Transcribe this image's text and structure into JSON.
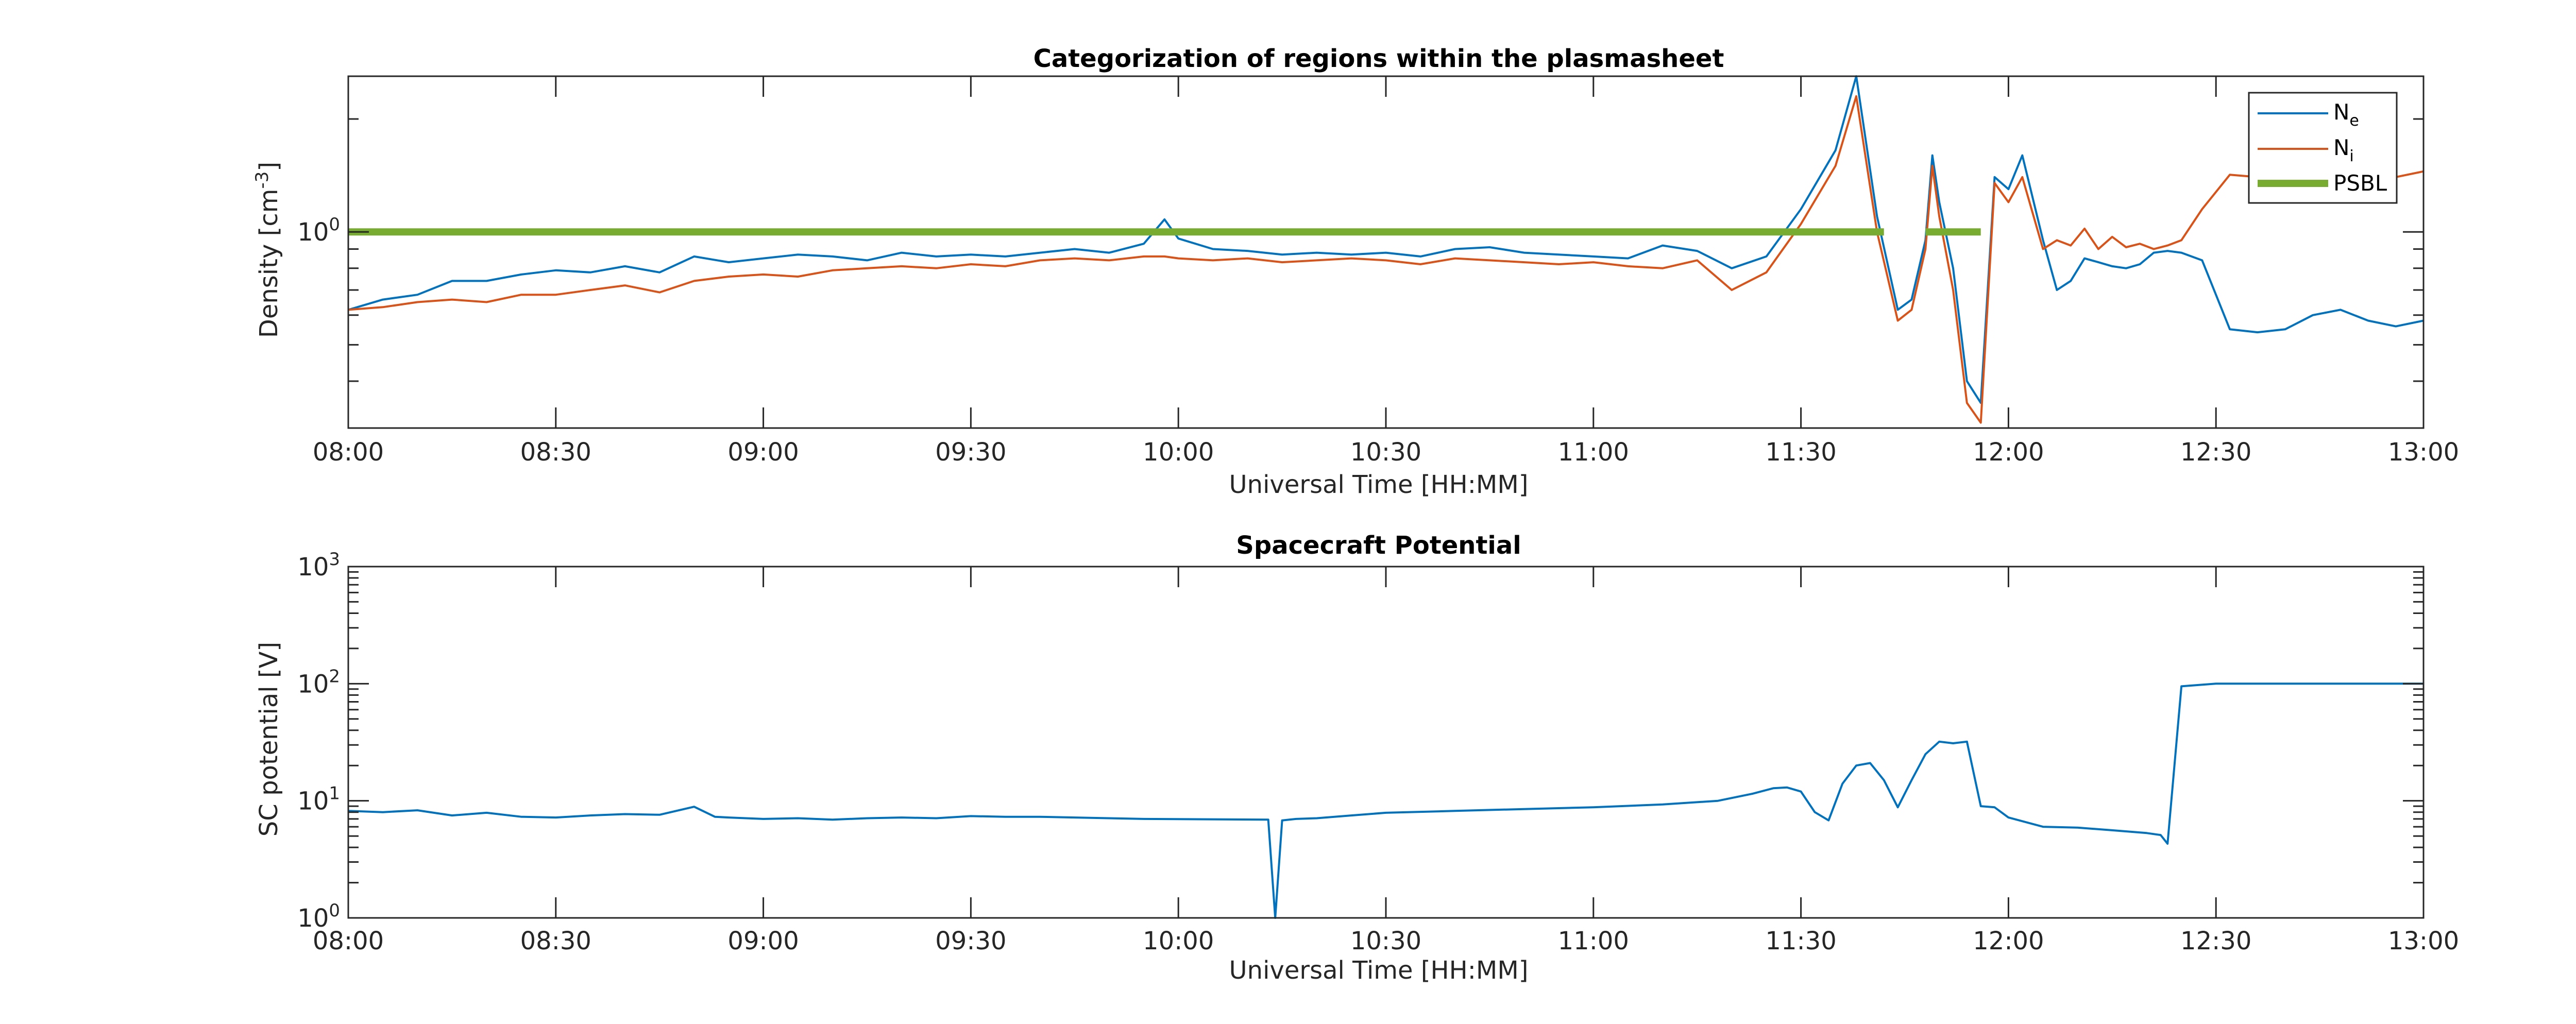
{
  "chart_data": [
    {
      "type": "line",
      "title": "Categorization of regions within the plasmasheet",
      "xlabel": "Universal Time [HH:MM]",
      "ylabel": "Density [cm",
      "ylabel_sup": "-3",
      "ylabel_end": "]",
      "yscale": "log",
      "ylim": [
        0.3,
        2.6
      ],
      "xlim": [
        0,
        300
      ],
      "x_ticks": [
        0,
        30,
        60,
        90,
        120,
        150,
        180,
        210,
        240,
        270,
        300
      ],
      "x_tick_labels": [
        "08:00",
        "08:30",
        "09:00",
        "09:30",
        "10:00",
        "10:30",
        "11:00",
        "11:30",
        "12:00",
        "12:30",
        "13:00"
      ],
      "y_tick_base": "10",
      "y_tick_exp": "0",
      "grid": false,
      "legend_position": "top-right",
      "legend": [
        {
          "base": "N",
          "sub": "e",
          "color": "#0072BD"
        },
        {
          "base": "N",
          "sub": "i",
          "color": "#D95319"
        },
        {
          "base": "PSBL",
          "sub": "",
          "color": "#77AC30"
        }
      ],
      "series": [
        {
          "name": "N_e",
          "color": "#0072BD",
          "x": [
            0,
            5,
            10,
            15,
            20,
            25,
            30,
            35,
            40,
            45,
            50,
            55,
            60,
            65,
            70,
            75,
            80,
            85,
            90,
            95,
            100,
            105,
            110,
            115,
            118,
            120,
            125,
            130,
            135,
            140,
            145,
            150,
            155,
            160,
            165,
            170,
            175,
            180,
            185,
            190,
            195,
            200,
            205,
            210,
            215,
            218,
            221,
            224,
            226,
            228,
            229,
            230,
            232,
            234,
            236,
            238,
            240,
            242,
            245,
            247,
            249,
            251,
            253,
            255,
            257,
            259,
            261,
            263,
            265,
            268,
            272,
            276,
            280,
            284,
            288,
            292,
            296,
            300
          ],
          "y": [
            0.62,
            0.66,
            0.68,
            0.74,
            0.74,
            0.77,
            0.79,
            0.78,
            0.81,
            0.78,
            0.86,
            0.83,
            0.85,
            0.87,
            0.86,
            0.84,
            0.88,
            0.86,
            0.87,
            0.86,
            0.88,
            0.9,
            0.88,
            0.93,
            1.08,
            0.96,
            0.9,
            0.89,
            0.87,
            0.88,
            0.87,
            0.88,
            0.86,
            0.9,
            0.91,
            0.88,
            0.87,
            0.86,
            0.85,
            0.92,
            0.89,
            0.8,
            0.86,
            1.15,
            1.65,
            2.6,
            1.1,
            0.62,
            0.66,
            0.95,
            1.6,
            1.2,
            0.8,
            0.4,
            0.35,
            1.4,
            1.3,
            1.6,
            0.95,
            0.7,
            0.74,
            0.85,
            0.83,
            0.81,
            0.8,
            0.82,
            0.88,
            0.89,
            0.88,
            0.84,
            0.55,
            0.54,
            0.55,
            0.6,
            0.62,
            0.58,
            0.56,
            0.58
          ]
        },
        {
          "name": "N_i",
          "color": "#D95319",
          "x": [
            0,
            5,
            10,
            15,
            20,
            25,
            30,
            35,
            40,
            45,
            50,
            55,
            60,
            65,
            70,
            75,
            80,
            85,
            90,
            95,
            100,
            105,
            110,
            115,
            118,
            120,
            125,
            130,
            135,
            140,
            145,
            150,
            155,
            160,
            165,
            170,
            175,
            180,
            185,
            190,
            195,
            200,
            205,
            210,
            215,
            218,
            221,
            224,
            226,
            228,
            229,
            230,
            232,
            234,
            236,
            238,
            240,
            242,
            245,
            247,
            249,
            251,
            253,
            255,
            257,
            259,
            261,
            263,
            265,
            268,
            272,
            276,
            280,
            284,
            288,
            292,
            296,
            300
          ],
          "y": [
            0.62,
            0.63,
            0.65,
            0.66,
            0.65,
            0.68,
            0.68,
            0.7,
            0.72,
            0.69,
            0.74,
            0.76,
            0.77,
            0.76,
            0.79,
            0.8,
            0.81,
            0.8,
            0.82,
            0.81,
            0.84,
            0.85,
            0.84,
            0.86,
            0.86,
            0.85,
            0.84,
            0.85,
            0.83,
            0.84,
            0.85,
            0.84,
            0.82,
            0.85,
            0.84,
            0.83,
            0.82,
            0.83,
            0.81,
            0.8,
            0.84,
            0.7,
            0.78,
            1.05,
            1.5,
            2.3,
            1.0,
            0.58,
            0.62,
            0.9,
            1.5,
            1.1,
            0.7,
            0.35,
            0.31,
            1.35,
            1.2,
            1.4,
            0.9,
            0.95,
            0.92,
            1.02,
            0.9,
            0.97,
            0.91,
            0.93,
            0.9,
            0.92,
            0.95,
            1.15,
            1.42,
            1.4,
            1.45,
            1.4,
            1.35,
            1.38,
            1.4,
            1.45
          ]
        },
        {
          "name": "PSBL",
          "color": "#77AC30",
          "segments": [
            [
              0,
              222
            ],
            [
              228,
              236
            ]
          ],
          "value": 1.0
        }
      ]
    },
    {
      "type": "line",
      "title": "Spacecraft Potential",
      "xlabel": "Universal Time [HH:MM]",
      "ylabel": "SC potential [V]",
      "yscale": "log",
      "ylim": [
        1,
        1000
      ],
      "xlim": [
        0,
        300
      ],
      "x_ticks": [
        0,
        30,
        60,
        90,
        120,
        150,
        180,
        210,
        240,
        270,
        300
      ],
      "x_tick_labels": [
        "08:00",
        "08:30",
        "09:00",
        "09:30",
        "10:00",
        "10:30",
        "11:00",
        "11:30",
        "12:00",
        "12:30",
        "13:00"
      ],
      "y_ticks": [
        1,
        10,
        100,
        1000
      ],
      "y_tick_base": "10",
      "y_tick_exps": [
        "0",
        "1",
        "2",
        "3"
      ],
      "grid": false,
      "series": [
        {
          "name": "SC potential",
          "color": "#0072BD",
          "x": [
            0,
            5,
            10,
            15,
            20,
            25,
            30,
            35,
            40,
            45,
            50,
            53,
            55,
            60,
            65,
            70,
            75,
            80,
            85,
            90,
            95,
            100,
            105,
            110,
            115,
            133,
            134,
            135,
            137,
            140,
            145,
            150,
            160,
            170,
            180,
            190,
            198,
            203,
            206,
            208,
            210,
            212,
            214,
            216,
            218,
            220,
            222,
            224,
            226,
            228,
            230,
            232,
            234,
            236,
            238,
            240,
            245,
            250,
            255,
            260,
            262,
            263,
            265,
            270,
            280,
            290,
            300
          ],
          "y": [
            8.2,
            8.0,
            8.3,
            7.5,
            7.9,
            7.3,
            7.2,
            7.5,
            7.7,
            7.6,
            8.9,
            7.3,
            7.2,
            7.0,
            7.1,
            6.9,
            7.1,
            7.2,
            7.1,
            7.4,
            7.3,
            7.3,
            7.2,
            7.1,
            7.0,
            6.9,
            1.0,
            6.8,
            7.0,
            7.1,
            7.5,
            7.9,
            8.2,
            8.5,
            8.8,
            9.3,
            10.0,
            11.5,
            12.8,
            13.0,
            12.0,
            8.0,
            6.8,
            14.0,
            20.0,
            21.0,
            15.0,
            8.8,
            15.0,
            25.0,
            32.0,
            31.0,
            32.0,
            9.0,
            8.8,
            7.2,
            6.0,
            5.9,
            5.6,
            5.3,
            5.1,
            4.3,
            95.0,
            100.0,
            100.0,
            100.0,
            100.0
          ]
        }
      ]
    }
  ]
}
